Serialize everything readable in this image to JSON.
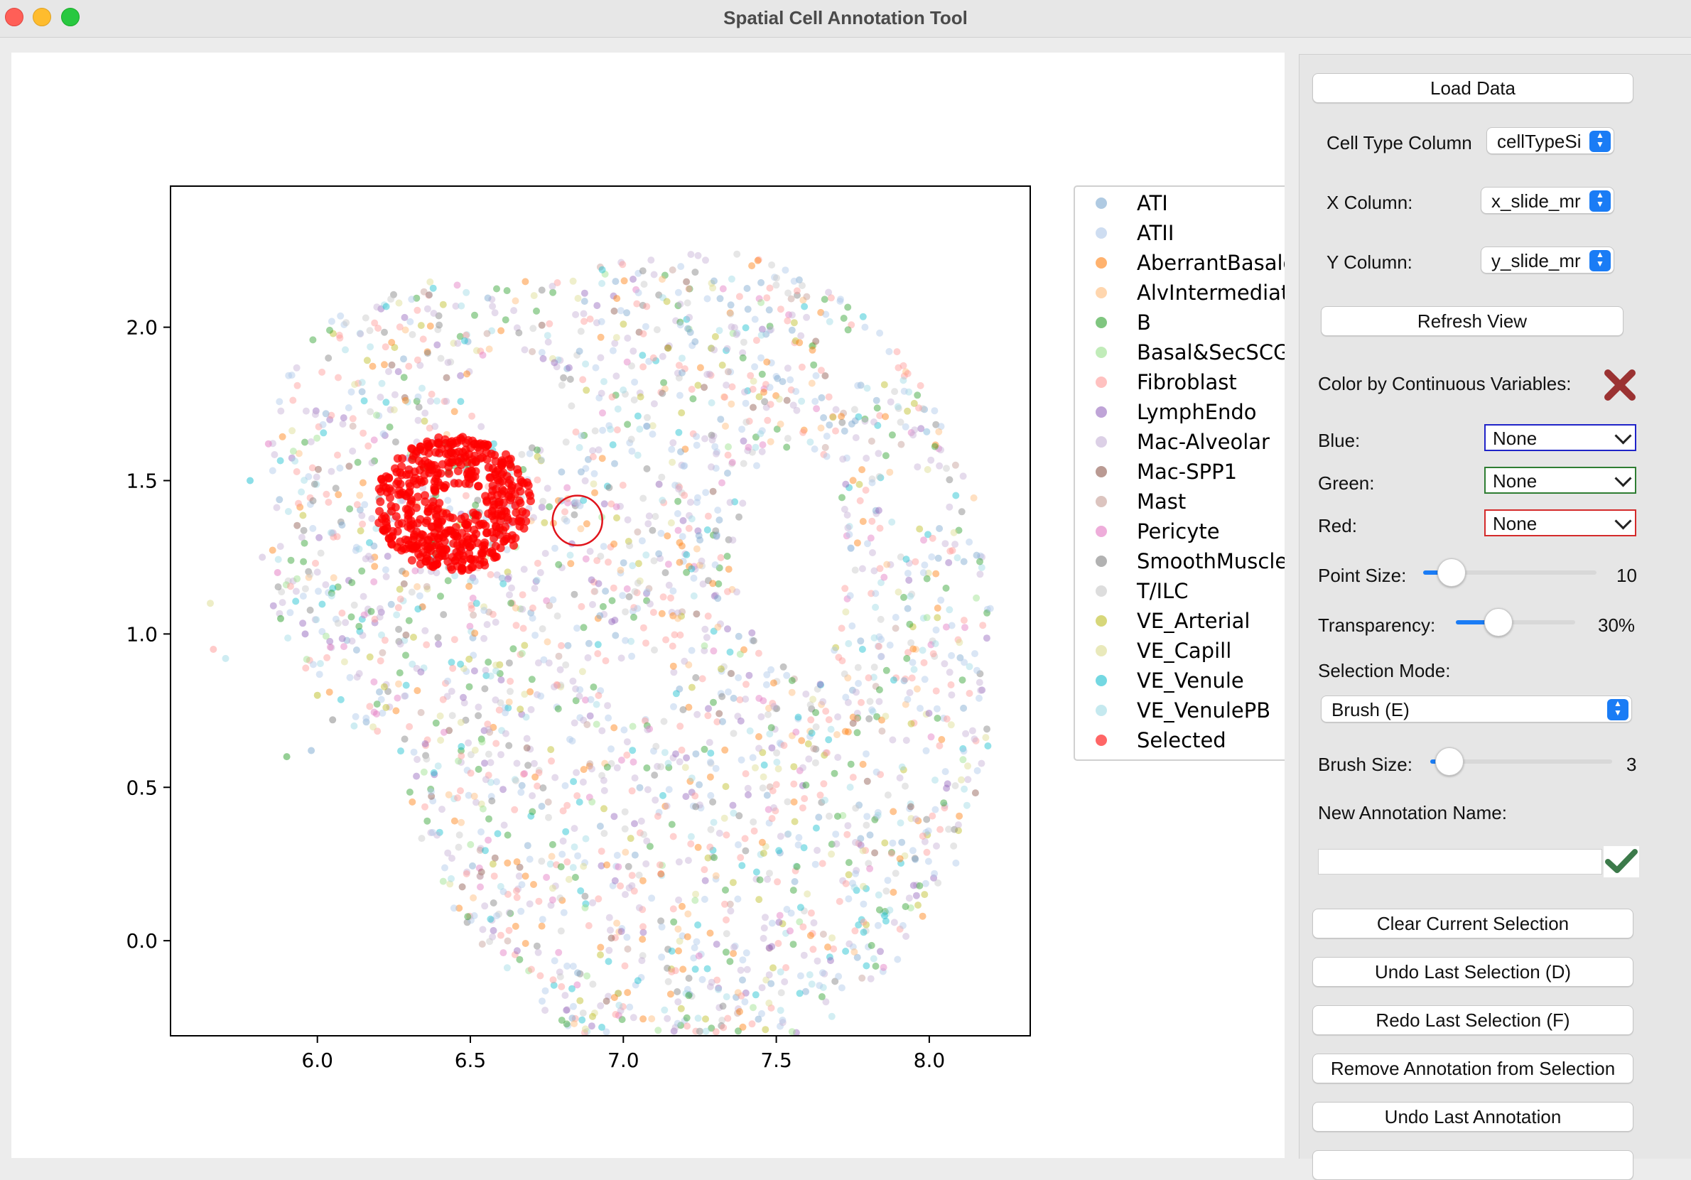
{
  "window": {
    "title": "Spatial Cell Annotation Tool"
  },
  "plot": {
    "xlim": [
      5.52,
      8.33
    ],
    "ylim": [
      -0.31,
      2.46
    ],
    "selection_cursor": {
      "x": 6.85,
      "y": 1.37
    }
  },
  "legend": {
    "entries": [
      {
        "label": "ATI",
        "color": "#7aa7cf"
      },
      {
        "label": "ATII",
        "color": "#aec7e8"
      },
      {
        "label": "AberrantBasaloid",
        "color": "#ff7f0e"
      },
      {
        "label": "AlvIntermediate",
        "color": "#ffbb78"
      },
      {
        "label": "B",
        "color": "#2ca02c"
      },
      {
        "label": "Basal&SecSCGB",
        "color": "#98df8a"
      },
      {
        "label": "Fibroblast",
        "color": "#ff9896"
      },
      {
        "label": "LymphEndo",
        "color": "#9467bd"
      },
      {
        "label": "Mac-Alveolar",
        "color": "#c5b0d5"
      },
      {
        "label": "Mac-SPP1",
        "color": "#8c564b"
      },
      {
        "label": "Mast",
        "color": "#c49c94"
      },
      {
        "label": "Pericyte",
        "color": "#e377c2"
      },
      {
        "label": "SmoothMuscle",
        "color": "#7f7f7f"
      },
      {
        "label": "T/ILC",
        "color": "#c7c7c7"
      },
      {
        "label": "VE_Arterial",
        "color": "#bcbd22"
      },
      {
        "label": "VE_Capill",
        "color": "#dbdb8d"
      },
      {
        "label": "VE_Venule",
        "color": "#17becf"
      },
      {
        "label": "VE_VenulePB",
        "color": "#9edae5"
      },
      {
        "label": "Selected",
        "color": "#ff0000"
      }
    ]
  },
  "chart_data": {
    "type": "scatter",
    "title": "",
    "xlabel": "",
    "ylabel": "",
    "xlim": [
      5.52,
      8.33
    ],
    "ylim": [
      -0.31,
      2.46
    ],
    "x_ticks": [
      "6.0",
      "6.5",
      "7.0",
      "7.5",
      "8.0"
    ],
    "y_ticks": [
      "0.0",
      "0.5",
      "1.0",
      "1.5",
      "2.0"
    ],
    "legend_position": "outside-right",
    "grid": false,
    "series": [
      {
        "name": "ATI",
        "color": "#7aa7cf"
      },
      {
        "name": "ATII",
        "color": "#aec7e8"
      },
      {
        "name": "AberrantBasaloid",
        "color": "#ff7f0e"
      },
      {
        "name": "AlvIntermediate",
        "color": "#ffbb78"
      },
      {
        "name": "B",
        "color": "#2ca02c"
      },
      {
        "name": "Basal&SecSCGB",
        "color": "#98df8a"
      },
      {
        "name": "Fibroblast",
        "color": "#ff9896"
      },
      {
        "name": "LymphEndo",
        "color": "#9467bd"
      },
      {
        "name": "Mac-Alveolar",
        "color": "#c5b0d5"
      },
      {
        "name": "Mac-SPP1",
        "color": "#8c564b"
      },
      {
        "name": "Mast",
        "color": "#c49c94"
      },
      {
        "name": "Pericyte",
        "color": "#e377c2"
      },
      {
        "name": "SmoothMuscle",
        "color": "#7f7f7f"
      },
      {
        "name": "T/ILC",
        "color": "#c7c7c7"
      },
      {
        "name": "VE_Arterial",
        "color": "#bcbd22"
      },
      {
        "name": "VE_Capill",
        "color": "#dbdb8d"
      },
      {
        "name": "VE_Venule",
        "color": "#17becf"
      },
      {
        "name": "VE_VenulePB",
        "color": "#9edae5"
      },
      {
        "name": "Selected",
        "color": "#ff0000"
      }
    ]
  },
  "controls": {
    "load_data": "Load Data",
    "cell_type_column_label": "Cell Type Column",
    "cell_type_column_value": "cellTypeSi",
    "x_column_label": "X Column:",
    "x_column_value": "x_slide_mr",
    "y_column_label": "Y Column:",
    "y_column_value": "y_slide_mr",
    "refresh_view": "Refresh View",
    "color_continuous_label": "Color by Continuous Variables:",
    "blue_label": "Blue:",
    "blue_value": "None",
    "green_label": "Green:",
    "green_value": "None",
    "red_label": "Red:",
    "red_value": "None",
    "point_size_label": "Point Size:",
    "point_size_value": "10",
    "point_size_fraction": 0.16,
    "transparency_label": "Transparency:",
    "transparency_value": "30%",
    "transparency_fraction": 0.35,
    "selection_mode_label": "Selection Mode:",
    "selection_mode_value": "Brush (E)",
    "brush_size_label": "Brush Size:",
    "brush_size_value": "3",
    "brush_size_fraction": 0.1,
    "new_annotation_label": "New Annotation Name:",
    "new_annotation_value": "",
    "clear_selection": "Clear Current Selection",
    "undo_selection": "Undo Last Selection (D)",
    "redo_selection": "Redo Last Selection (F)",
    "remove_annotation": "Remove Annotation from Selection",
    "undo_annotation": "Undo Last Annotation"
  }
}
